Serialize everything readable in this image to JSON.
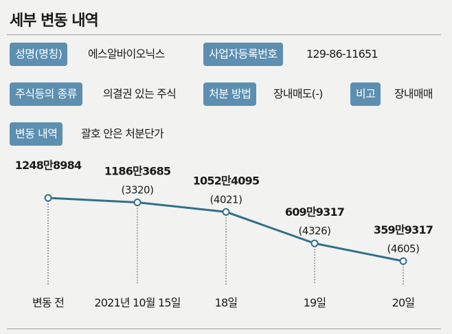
{
  "title": "세부 변동 내역",
  "info": {
    "name_label": "성명(명칭)",
    "name_value": "에스알바이오닉스",
    "bizno_label": "사업자등록번호",
    "bizno_value": "129-86-11651",
    "stock_label": "주식등의 종류",
    "stock_value": "의결권 있는 주식",
    "method_label": "처분 방법",
    "method_value": "장내매도(-)",
    "note_label": "비고",
    "note_value": "장내매매",
    "change_label": "변동 내역",
    "change_value": "괄호 안은 처분단가"
  },
  "chart_data": {
    "type": "line",
    "categories": [
      "변동 전",
      "2021년 10월 15일",
      "18일",
      "19일",
      "20일"
    ],
    "values": [
      12488984,
      11863685,
      10524095,
      6099317,
      3599317
    ],
    "value_labels": [
      "1248만8984",
      "1186만3685",
      "1052만4095",
      "609만9317",
      "359만9317"
    ],
    "price_labels": [
      "",
      "(3320)",
      "(4021)",
      "(4326)",
      "(4605)"
    ],
    "line_color": "#2f6f8a",
    "grid": false
  }
}
